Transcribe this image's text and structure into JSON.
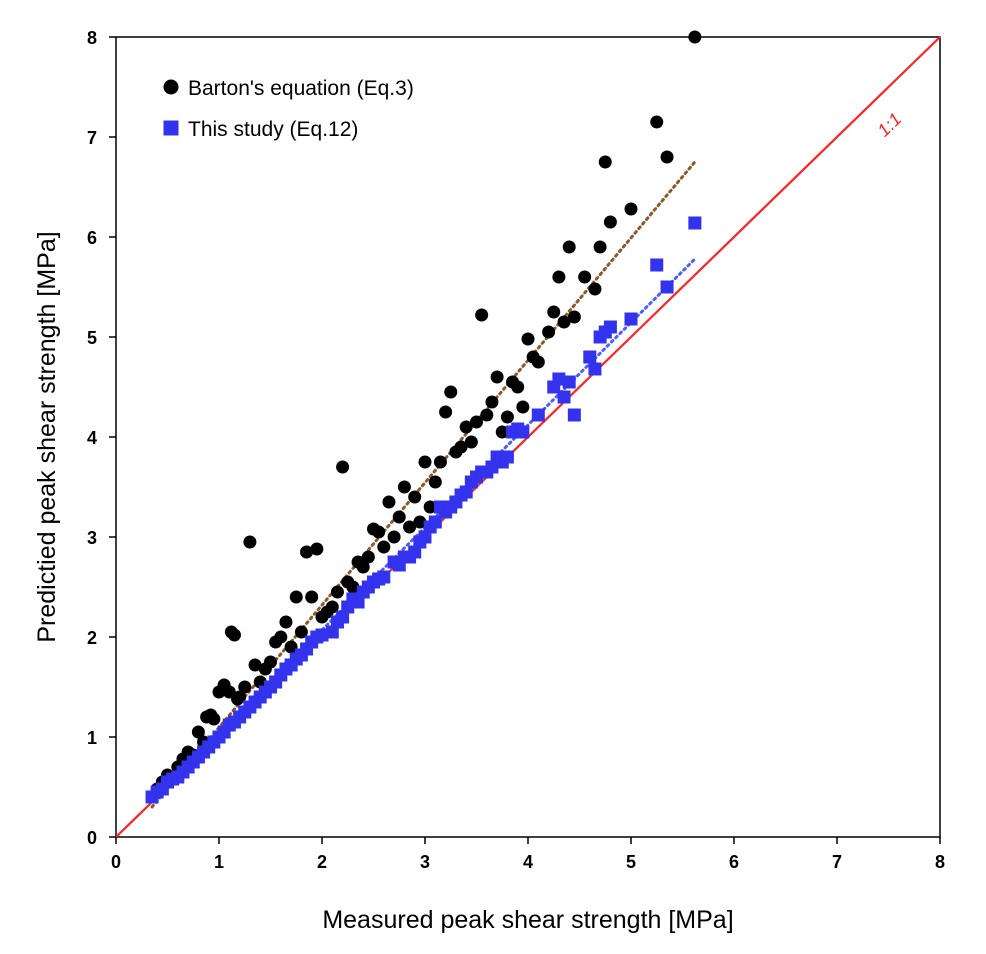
{
  "chart_data": {
    "type": "scatter",
    "xlabel": "Measured peak shear strength [MPa]",
    "ylabel": "Predictied peak shear strength [MPa]",
    "xlim": [
      0,
      8
    ],
    "ylim": [
      0,
      8
    ],
    "xticks": [
      "0",
      "1",
      "2",
      "3",
      "4",
      "5",
      "6",
      "7",
      "8"
    ],
    "yticks": [
      "0",
      "1",
      "2",
      "3",
      "4",
      "5",
      "6",
      "7",
      "8"
    ],
    "grid": false,
    "legend_position": "top-left",
    "reference_line": {
      "label": "1:1",
      "x": [
        0,
        8
      ],
      "y": [
        0,
        8
      ],
      "color": "#ff2222"
    },
    "series": [
      {
        "name": "Barton's equation (Eq.3)",
        "marker": "circle",
        "color": "#000000",
        "trend_line": {
          "x": [
            0.35,
            5.62
          ],
          "y": [
            0.3,
            6.75
          ],
          "color": "#8b5a2b",
          "style": "dotted"
        },
        "points": [
          [
            0.35,
            0.4
          ],
          [
            0.4,
            0.48
          ],
          [
            0.45,
            0.55
          ],
          [
            0.5,
            0.62
          ],
          [
            0.55,
            0.6
          ],
          [
            0.6,
            0.7
          ],
          [
            0.65,
            0.78
          ],
          [
            0.7,
            0.85
          ],
          [
            0.75,
            0.82
          ],
          [
            0.8,
            1.05
          ],
          [
            0.85,
            0.95
          ],
          [
            0.88,
            1.2
          ],
          [
            0.92,
            1.22
          ],
          [
            0.95,
            1.18
          ],
          [
            1.0,
            1.45
          ],
          [
            1.05,
            1.52
          ],
          [
            1.1,
            1.45
          ],
          [
            1.12,
            2.05
          ],
          [
            1.15,
            2.02
          ],
          [
            1.18,
            1.38
          ],
          [
            1.2,
            1.4
          ],
          [
            1.25,
            1.5
          ],
          [
            1.3,
            2.95
          ],
          [
            1.35,
            1.72
          ],
          [
            1.4,
            1.55
          ],
          [
            1.45,
            1.68
          ],
          [
            1.5,
            1.75
          ],
          [
            1.55,
            1.95
          ],
          [
            1.6,
            2.0
          ],
          [
            1.65,
            2.15
          ],
          [
            1.7,
            1.9
          ],
          [
            1.75,
            2.4
          ],
          [
            1.8,
            2.05
          ],
          [
            1.85,
            2.85
          ],
          [
            1.9,
            2.4
          ],
          [
            1.95,
            2.88
          ],
          [
            2.0,
            2.2
          ],
          [
            2.05,
            2.25
          ],
          [
            2.1,
            2.3
          ],
          [
            2.15,
            2.45
          ],
          [
            2.2,
            3.7
          ],
          [
            2.25,
            2.55
          ],
          [
            2.3,
            2.5
          ],
          [
            2.35,
            2.75
          ],
          [
            2.4,
            2.7
          ],
          [
            2.45,
            2.8
          ],
          [
            2.5,
            3.08
          ],
          [
            2.55,
            3.05
          ],
          [
            2.6,
            2.9
          ],
          [
            2.65,
            3.35
          ],
          [
            2.7,
            3.0
          ],
          [
            2.75,
            3.2
          ],
          [
            2.8,
            3.5
          ],
          [
            2.85,
            3.1
          ],
          [
            2.9,
            3.4
          ],
          [
            2.95,
            3.15
          ],
          [
            3.0,
            3.75
          ],
          [
            3.05,
            3.3
          ],
          [
            3.1,
            3.55
          ],
          [
            3.15,
            3.75
          ],
          [
            3.2,
            4.25
          ],
          [
            3.25,
            4.45
          ],
          [
            3.3,
            3.85
          ],
          [
            3.35,
            3.9
          ],
          [
            3.4,
            4.1
          ],
          [
            3.45,
            3.95
          ],
          [
            3.5,
            4.15
          ],
          [
            3.55,
            5.22
          ],
          [
            3.6,
            4.22
          ],
          [
            3.65,
            4.35
          ],
          [
            3.7,
            4.6
          ],
          [
            3.75,
            4.05
          ],
          [
            3.8,
            4.2
          ],
          [
            3.85,
            4.55
          ],
          [
            3.9,
            4.5
          ],
          [
            3.95,
            4.3
          ],
          [
            4.0,
            4.98
          ],
          [
            4.05,
            4.8
          ],
          [
            4.1,
            4.75
          ],
          [
            4.2,
            5.05
          ],
          [
            4.25,
            5.25
          ],
          [
            4.3,
            5.6
          ],
          [
            4.35,
            5.15
          ],
          [
            4.4,
            5.9
          ],
          [
            4.45,
            5.2
          ],
          [
            4.55,
            5.6
          ],
          [
            4.65,
            5.48
          ],
          [
            4.7,
            5.9
          ],
          [
            4.75,
            6.75
          ],
          [
            4.8,
            6.15
          ],
          [
            5.0,
            6.28
          ],
          [
            5.25,
            7.15
          ],
          [
            5.35,
            6.8
          ],
          [
            5.62,
            8.0
          ]
        ]
      },
      {
        "name": "This study (Eq.12)",
        "marker": "square",
        "color": "#3333ee",
        "trend_line": {
          "x": [
            0.35,
            5.62
          ],
          "y": [
            0.38,
            5.78
          ],
          "color": "#4f5fff",
          "style": "dotted"
        },
        "points": [
          [
            0.35,
            0.4
          ],
          [
            0.4,
            0.45
          ],
          [
            0.45,
            0.48
          ],
          [
            0.5,
            0.55
          ],
          [
            0.55,
            0.58
          ],
          [
            0.6,
            0.6
          ],
          [
            0.65,
            0.65
          ],
          [
            0.7,
            0.7
          ],
          [
            0.75,
            0.75
          ],
          [
            0.8,
            0.8
          ],
          [
            0.85,
            0.85
          ],
          [
            0.9,
            0.9
          ],
          [
            0.95,
            0.95
          ],
          [
            1.0,
            1.0
          ],
          [
            1.05,
            1.05
          ],
          [
            1.1,
            1.12
          ],
          [
            1.15,
            1.15
          ],
          [
            1.2,
            1.2
          ],
          [
            1.25,
            1.25
          ],
          [
            1.3,
            1.3
          ],
          [
            1.35,
            1.35
          ],
          [
            1.4,
            1.4
          ],
          [
            1.45,
            1.45
          ],
          [
            1.5,
            1.5
          ],
          [
            1.55,
            1.55
          ],
          [
            1.6,
            1.62
          ],
          [
            1.65,
            1.68
          ],
          [
            1.7,
            1.72
          ],
          [
            1.75,
            1.78
          ],
          [
            1.8,
            1.82
          ],
          [
            1.85,
            1.88
          ],
          [
            1.9,
            1.95
          ],
          [
            1.95,
            2.0
          ],
          [
            2.0,
            2.02
          ],
          [
            2.1,
            2.05
          ],
          [
            2.15,
            2.15
          ],
          [
            2.2,
            2.2
          ],
          [
            2.25,
            2.3
          ],
          [
            2.3,
            2.38
          ],
          [
            2.35,
            2.35
          ],
          [
            2.4,
            2.45
          ],
          [
            2.45,
            2.5
          ],
          [
            2.5,
            2.55
          ],
          [
            2.55,
            2.58
          ],
          [
            2.6,
            2.6
          ],
          [
            2.7,
            2.75
          ],
          [
            2.75,
            2.72
          ],
          [
            2.8,
            2.8
          ],
          [
            2.85,
            2.8
          ],
          [
            2.9,
            2.85
          ],
          [
            2.95,
            2.95
          ],
          [
            3.0,
            3.0
          ],
          [
            3.05,
            3.1
          ],
          [
            3.1,
            3.15
          ],
          [
            3.15,
            3.3
          ],
          [
            3.2,
            3.25
          ],
          [
            3.25,
            3.3
          ],
          [
            3.3,
            3.35
          ],
          [
            3.35,
            3.42
          ],
          [
            3.4,
            3.45
          ],
          [
            3.45,
            3.55
          ],
          [
            3.5,
            3.6
          ],
          [
            3.55,
            3.65
          ],
          [
            3.6,
            3.65
          ],
          [
            3.65,
            3.7
          ],
          [
            3.7,
            3.8
          ],
          [
            3.75,
            3.75
          ],
          [
            3.8,
            3.8
          ],
          [
            3.85,
            4.05
          ],
          [
            3.9,
            4.08
          ],
          [
            3.95,
            4.05
          ],
          [
            4.1,
            4.22
          ],
          [
            4.25,
            4.5
          ],
          [
            4.3,
            4.58
          ],
          [
            4.35,
            4.4
          ],
          [
            4.4,
            4.55
          ],
          [
            4.45,
            4.22
          ],
          [
            4.6,
            4.8
          ],
          [
            4.65,
            4.68
          ],
          [
            4.7,
            5.0
          ],
          [
            4.75,
            5.05
          ],
          [
            4.8,
            5.1
          ],
          [
            5.0,
            5.18
          ],
          [
            5.25,
            5.72
          ],
          [
            5.35,
            5.5
          ],
          [
            5.62,
            6.14
          ]
        ]
      }
    ]
  }
}
